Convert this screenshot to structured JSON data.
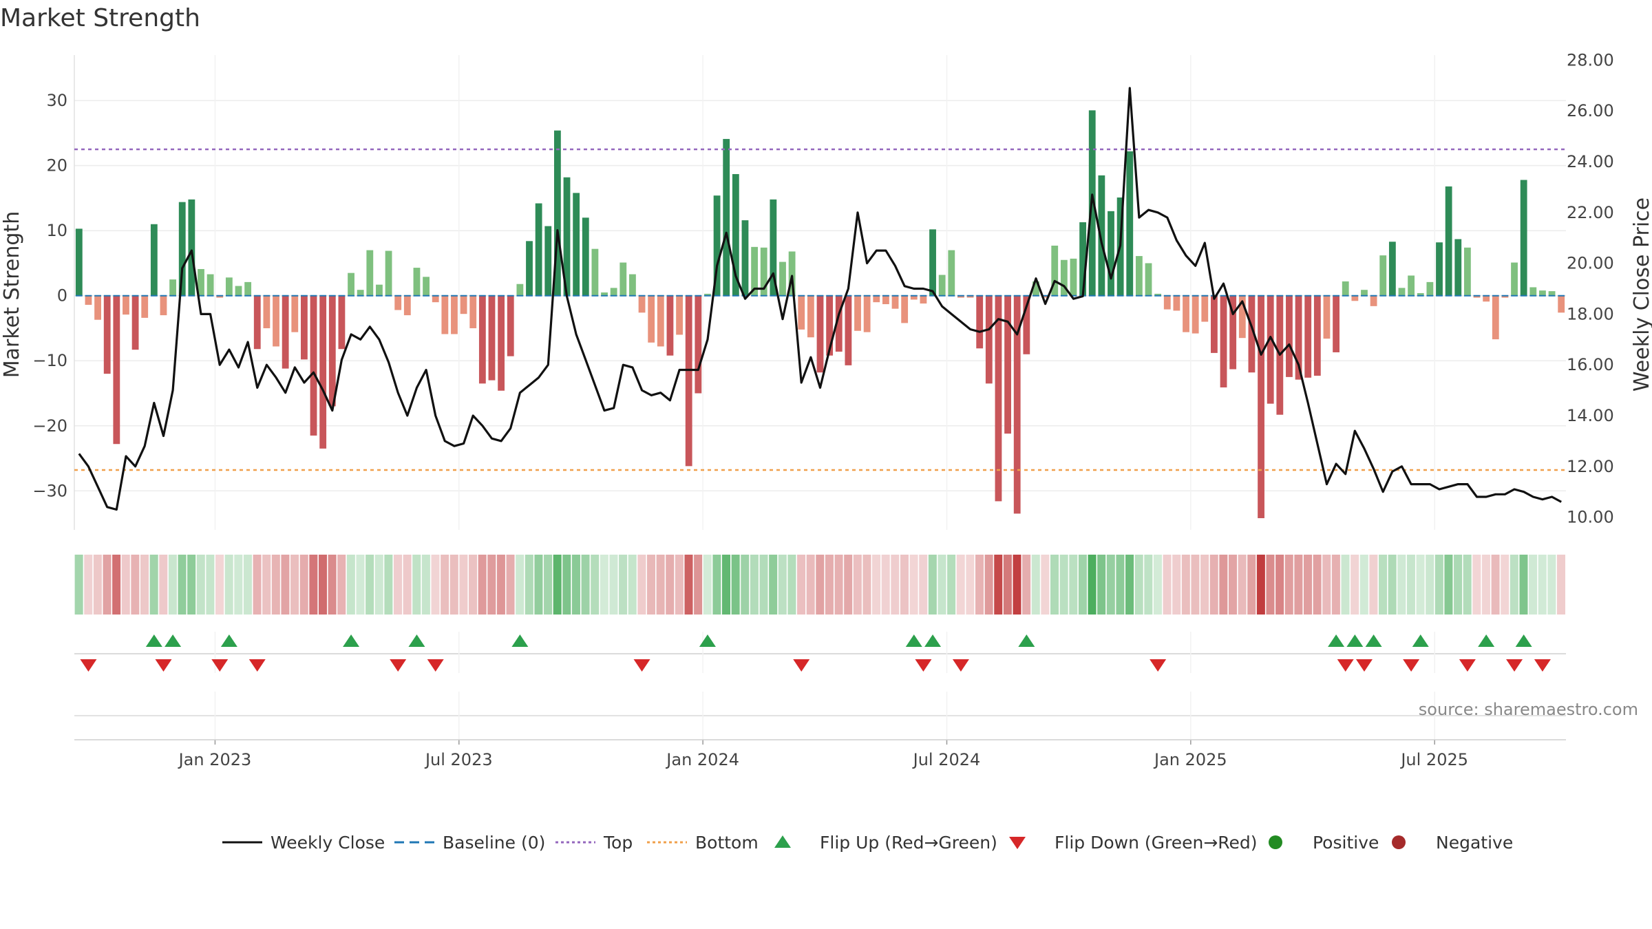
{
  "chart_data": {
    "type": "bar+line",
    "title": "Market Strength",
    "ylabel": "Market Strength",
    "y2label": "Weekly Close Price",
    "ylim": [
      -36,
      37
    ],
    "y2lim": [
      9.5,
      28.2
    ],
    "yticks": [
      30,
      20,
      10,
      0,
      -10,
      -20,
      -30
    ],
    "ytick_labels": [
      "30",
      "20",
      "10",
      "0",
      "−10",
      "−20",
      "−30"
    ],
    "y2ticks": [
      28,
      26,
      24,
      22,
      20,
      18,
      16,
      14,
      12,
      10
    ],
    "y2tick_labels": [
      "28.00",
      "26.00",
      "24.00",
      "22.00",
      "20.00",
      "18.00",
      "16.00",
      "14.00",
      "12.00",
      "10.00"
    ],
    "xtick_labels": [
      "Jan 2023",
      "Jul 2023",
      "Jan 2024",
      "Jul 2024",
      "Jan 2025",
      "Jul 2025"
    ],
    "xtick_weeks": [
      15,
      41,
      67,
      93,
      119,
      145
    ],
    "top_line": 22.5,
    "bottom_line": -26.8,
    "strength": [
      10.3,
      -1.4,
      -3.7,
      -12,
      -22.8,
      -2.9,
      -8.3,
      -3.4,
      11,
      -3,
      2.5,
      14.4,
      14.8,
      4.1,
      3.3,
      -0.3,
      2.8,
      1.5,
      2.1,
      -8.2,
      -5,
      -7.8,
      -11.2,
      -5.6,
      -9.8,
      -21.5,
      -23.5,
      -17,
      -8.2,
      3.5,
      0.9,
      7,
      1.7,
      6.9,
      -2.2,
      -3,
      4.3,
      2.9,
      -1,
      -5.9,
      -5.9,
      -2.8,
      -5,
      -13.5,
      -13,
      -14.6,
      -9.3,
      1.8,
      8.4,
      14.2,
      10.7,
      25.4,
      18.2,
      15.8,
      12,
      7.2,
      0.5,
      1.2,
      5.1,
      3.3,
      -2.6,
      -7.2,
      -7.8,
      -9.2,
      -6,
      -26.2,
      -15,
      0.3,
      15.4,
      24.1,
      18.7,
      11.6,
      7.5,
      7.4,
      14.8,
      5.2,
      6.8,
      -5.2,
      -6.4,
      -11.8,
      -9.2,
      -8.6,
      -10.7,
      -5.4,
      -5.6,
      -1,
      -1.3,
      -2,
      -4.2,
      -0.6,
      -1.2,
      10.2,
      3.2,
      7,
      -0.3,
      -0.3,
      -8.1,
      -13.5,
      -31.6,
      -21.2,
      -33.5,
      -9,
      2.2,
      -0.3,
      7.7,
      5.5,
      5.7,
      11.3,
      28.5,
      18.5,
      13,
      15.1,
      22.2,
      6.1,
      5,
      0.3,
      -2.1,
      -2.3,
      -5.6,
      -5.8,
      -4,
      -8.8,
      -14.1,
      -11.3,
      -6.5,
      -11.8,
      -34.2,
      -16.6,
      -18.3,
      -12.5,
      -12.9,
      -12.6,
      -12.3,
      -6.6,
      -8.7,
      2.2,
      -0.8,
      0.9,
      -1.6,
      6.2,
      8.3,
      1.2,
      3.1,
      0.4,
      2.1,
      8.2,
      16.8,
      8.7,
      7.4,
      -0.3,
      -0.9,
      -6.7,
      -0.3,
      5.1,
      17.8,
      1.3,
      0.8,
      0.7,
      -2.6
    ],
    "weekly_close": [
      12.5,
      12,
      11.2,
      10.4,
      10.3,
      12.4,
      12,
      12.8,
      14.5,
      13.2,
      15,
      19.8,
      20.5,
      18,
      18,
      16,
      16.6,
      15.9,
      16.9,
      15.1,
      16,
      15.5,
      14.9,
      15.9,
      15.3,
      15.7,
      15,
      14.2,
      16.2,
      17.2,
      17,
      17.5,
      17,
      16.1,
      14.9,
      14,
      15.1,
      15.8,
      14,
      13,
      12.8,
      12.9,
      14,
      13.6,
      13.1,
      13,
      13.5,
      14.9,
      15.2,
      15.5,
      16,
      21.3,
      18.7,
      17.2,
      16.2,
      15.2,
      14.2,
      14.3,
      16,
      15.9,
      15,
      14.8,
      14.9,
      14.6,
      15.8,
      15.8,
      15.8,
      17,
      19.9,
      21.2,
      19.5,
      18.6,
      19,
      19,
      19.6,
      17.8,
      19.5,
      15.3,
      16.3,
      15.1,
      16.6,
      18,
      19,
      22,
      20,
      20.5,
      20.5,
      19.9,
      19.1,
      19,
      19,
      18.9,
      18.3,
      18,
      17.7,
      17.4,
      17.3,
      17.4,
      17.8,
      17.7,
      17.2,
      18.3,
      19.4,
      18.4,
      19.3,
      19.1,
      18.6,
      18.7,
      22.7,
      20.8,
      19.4,
      20.7,
      26.9,
      21.8,
      22.1,
      22,
      21.8,
      20.9,
      20.3,
      19.9,
      20.8,
      18.6,
      19.2,
      18,
      18.5,
      17.5,
      16.4,
      17.1,
      16.4,
      16.8,
      16,
      14.5,
      12.9,
      11.3,
      12.1,
      11.7,
      13.4,
      12.7,
      11.9,
      11,
      11.8,
      12,
      11.3,
      11.3,
      11.3,
      11.1,
      11.2,
      11.3,
      11.3,
      10.8,
      10.8,
      10.9,
      10.9,
      11.1,
      11,
      10.8,
      10.7,
      10.8,
      10.6
    ],
    "flip_up_weeks": [
      8,
      10,
      16,
      29,
      36,
      47,
      67,
      89,
      91,
      101,
      134,
      136,
      138,
      143,
      150,
      154
    ],
    "flip_down_weeks": [
      1,
      9,
      15,
      19,
      34,
      38,
      60,
      77,
      90,
      94,
      115,
      135,
      137,
      142,
      148,
      153,
      156
    ],
    "legend": [
      "Weekly Close",
      "Baseline (0)",
      "Top",
      "Bottom",
      "Flip Up (Red→Green)",
      "Flip Down (Green→Red)",
      "Positive",
      "Negative"
    ],
    "source": "source: sharemaestro.com",
    "colors": {
      "strong_green": "#2e8b57",
      "light_green": "#7fc07f",
      "strong_red": "#c8565a",
      "light_red": "#e8927c",
      "line": "#111111",
      "top": "#9467bd",
      "bottom": "#f0a04b",
      "baseline": "#1f77b4",
      "flip_up": "#2ca04c",
      "flip_down": "#d62728",
      "positive": "#228b22",
      "negative": "#a52a2a"
    }
  }
}
